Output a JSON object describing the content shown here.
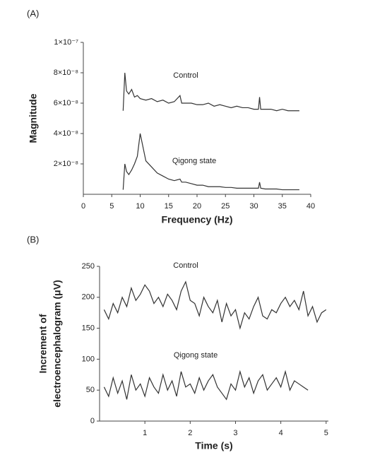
{
  "chart_data": [
    {
      "type": "line",
      "panel": "(A)",
      "xlabel": "Frequency (Hz)",
      "ylabel": [
        "Magnitude"
      ],
      "xlim": [
        0,
        40
      ],
      "xticks": [
        0,
        5,
        10,
        15,
        20,
        25,
        30,
        35,
        40
      ],
      "ylim": [
        0,
        1e-07
      ],
      "yticks": [
        {
          "value": 2e-08,
          "label": "2×10⁻⁸"
        },
        {
          "value": 4e-08,
          "label": "4×10⁻⁸"
        },
        {
          "value": 6e-08,
          "label": "6×10⁻⁸"
        },
        {
          "value": 8e-08,
          "label": "8×10⁻⁸"
        },
        {
          "value": 1e-07,
          "label": "1×10⁻⁷"
        }
      ],
      "annotations": [
        "Control",
        "Qigong state"
      ],
      "series": [
        {
          "name": "Control",
          "color": "#333333",
          "x": [
            7,
            7.3,
            7.6,
            8,
            8.5,
            9,
            9.5,
            10,
            11,
            12,
            13,
            14,
            15,
            16,
            17,
            17.3,
            18,
            19,
            20,
            21,
            22,
            23,
            24,
            25,
            26,
            27,
            28,
            29,
            30,
            30.8,
            31,
            31.2,
            32,
            33,
            34,
            35,
            36,
            37,
            38
          ],
          "values": [
            5.5e-08,
            8e-08,
            6.8e-08,
            6.6e-08,
            6.9e-08,
            6.4e-08,
            6.5e-08,
            6.3e-08,
            6.2e-08,
            6.3e-08,
            6.1e-08,
            6.2e-08,
            6e-08,
            6.1e-08,
            6.5e-08,
            6e-08,
            6e-08,
            6e-08,
            5.9e-08,
            5.9e-08,
            6e-08,
            5.8e-08,
            5.9e-08,
            5.8e-08,
            5.7e-08,
            5.8e-08,
            5.7e-08,
            5.7e-08,
            5.6e-08,
            5.6e-08,
            6.4e-08,
            5.6e-08,
            5.6e-08,
            5.6e-08,
            5.5e-08,
            5.6e-08,
            5.5e-08,
            5.5e-08,
            5.5e-08
          ]
        },
        {
          "name": "Qigong state",
          "color": "#333333",
          "x": [
            7,
            7.3,
            7.6,
            8,
            8.5,
            9,
            9.5,
            10,
            11,
            12,
            13,
            14,
            15,
            16,
            17,
            17.3,
            18,
            19,
            20,
            21,
            22,
            23,
            24,
            25,
            26,
            27,
            28,
            29,
            30,
            30.8,
            31,
            31.2,
            32,
            33,
            34,
            35,
            36,
            37,
            38
          ],
          "values": [
            3e-09,
            2e-08,
            1.5e-08,
            1.3e-08,
            1.6e-08,
            2e-08,
            2.5e-08,
            4e-08,
            2.2e-08,
            1.8e-08,
            1.4e-08,
            1.2e-08,
            1e-08,
            9e-09,
            1e-08,
            8e-09,
            8e-09,
            7e-09,
            6e-09,
            6e-09,
            5e-09,
            5e-09,
            5e-09,
            4.5e-09,
            4.5e-09,
            4e-09,
            4e-09,
            4e-09,
            4e-09,
            4e-09,
            8e-09,
            4e-09,
            3.5e-09,
            3.5e-09,
            3.5e-09,
            3e-09,
            3e-09,
            3e-09,
            3e-09
          ]
        }
      ]
    },
    {
      "type": "line",
      "panel": "(B)",
      "xlabel": "Time (s)",
      "ylabel": [
        "Increment of",
        "electroencephalogram (μV)"
      ],
      "xlim": [
        0,
        5.05
      ],
      "xticks": [
        1,
        2,
        3,
        4,
        5
      ],
      "ylim": [
        0,
        250
      ],
      "yticks": [
        0,
        50,
        100,
        150,
        200,
        250
      ],
      "annotations": [
        "Control",
        "Qigong state"
      ],
      "series": [
        {
          "name": "Control",
          "color": "#333333",
          "x": [
            0.1,
            0.2,
            0.3,
            0.4,
            0.5,
            0.6,
            0.7,
            0.8,
            0.9,
            1.0,
            1.1,
            1.2,
            1.3,
            1.4,
            1.5,
            1.6,
            1.7,
            1.8,
            1.9,
            2.0,
            2.1,
            2.2,
            2.3,
            2.4,
            2.5,
            2.6,
            2.7,
            2.8,
            2.9,
            3.0,
            3.1,
            3.2,
            3.3,
            3.4,
            3.5,
            3.6,
            3.7,
            3.8,
            3.9,
            4.0,
            4.1,
            4.2,
            4.3,
            4.4,
            4.5,
            4.6,
            4.7,
            4.8,
            4.9,
            5.0
          ],
          "values": [
            180,
            165,
            190,
            175,
            200,
            185,
            215,
            195,
            205,
            220,
            210,
            190,
            200,
            185,
            205,
            195,
            180,
            210,
            225,
            195,
            190,
            170,
            200,
            185,
            175,
            195,
            160,
            190,
            170,
            180,
            150,
            175,
            165,
            185,
            200,
            170,
            165,
            180,
            175,
            190,
            200,
            185,
            195,
            180,
            210,
            170,
            185,
            160,
            175,
            180
          ]
        },
        {
          "name": "Qigong state",
          "color": "#333333",
          "x": [
            0.1,
            0.2,
            0.3,
            0.4,
            0.5,
            0.6,
            0.7,
            0.8,
            0.9,
            1.0,
            1.1,
            1.2,
            1.3,
            1.4,
            1.5,
            1.6,
            1.7,
            1.8,
            1.9,
            2.0,
            2.1,
            2.2,
            2.3,
            2.4,
            2.5,
            2.6,
            2.7,
            2.8,
            2.9,
            3.0,
            3.1,
            3.2,
            3.3,
            3.4,
            3.5,
            3.6,
            3.7,
            3.8,
            3.9,
            4.0,
            4.1,
            4.2,
            4.3,
            4.4,
            4.5,
            4.6
          ],
          "values": [
            55,
            40,
            70,
            45,
            65,
            35,
            75,
            50,
            60,
            40,
            70,
            55,
            45,
            75,
            50,
            65,
            40,
            80,
            55,
            60,
            45,
            70,
            50,
            65,
            75,
            55,
            45,
            35,
            60,
            50,
            80,
            55,
            70,
            45,
            65,
            75,
            50,
            60,
            70,
            55,
            80,
            50,
            65,
            60,
            55,
            50
          ]
        }
      ]
    }
  ]
}
